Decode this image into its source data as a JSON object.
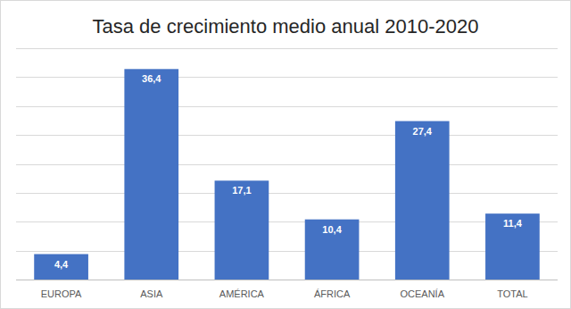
{
  "chart_data": {
    "type": "bar",
    "title": "Tasa de crecimiento medio anual 2010-2020",
    "categories": [
      "EUROPA",
      "ASIA",
      "AMÉRICA",
      "ÁFRICA",
      "OCEANÍA",
      "TOTAL"
    ],
    "values": [
      4.4,
      36.4,
      17.1,
      10.4,
      27.4,
      11.4
    ],
    "value_labels": [
      "4,4",
      "36,4",
      "17,1",
      "10,4",
      "27,4",
      "11,4"
    ],
    "color": "#4472c4",
    "ylim": [
      0,
      40
    ],
    "yticks": [
      0,
      5,
      10,
      15,
      20,
      25,
      30,
      35,
      40
    ],
    "grid": true,
    "data_labels": true,
    "tick_labels": "x"
  }
}
